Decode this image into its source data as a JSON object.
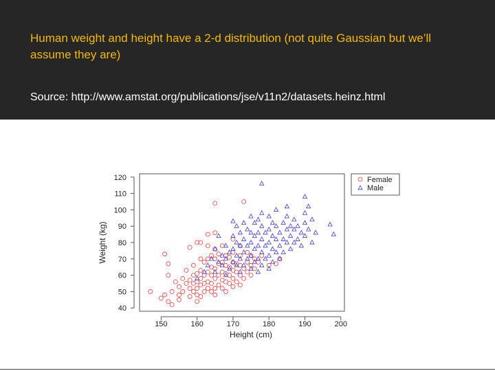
{
  "slide": {
    "title": "Human weight and height have a 2-d distribution (not quite Gaussian but we’ll assume they are)",
    "source": "Source: http://www.amstat.org/publications/jse/v11n2/datasets.heinz.html"
  },
  "colors": {
    "female": "#e8413c",
    "male": "#3b3bd6",
    "header_bg": "#262626",
    "title": "#f5b800"
  },
  "chart_data": {
    "type": "scatter",
    "title": "",
    "xlabel": "Height (cm)",
    "ylabel": "Weight (kg)",
    "xlim": [
      144,
      201
    ],
    "ylim": [
      38,
      122
    ],
    "xticks": [
      150,
      160,
      170,
      180,
      190,
      200
    ],
    "yticks": [
      40,
      50,
      60,
      70,
      80,
      90,
      100,
      110,
      120
    ],
    "grid": false,
    "legend": {
      "position": "top-right outside",
      "entries": [
        "Female",
        "Male"
      ]
    },
    "series": [
      {
        "name": "Female",
        "marker": "circle",
        "points": [
          [
            147,
            50
          ],
          [
            150,
            46
          ],
          [
            151,
            48
          ],
          [
            151,
            73
          ],
          [
            152,
            44
          ],
          [
            152,
            60
          ],
          [
            152,
            67
          ],
          [
            153,
            42
          ],
          [
            153,
            50
          ],
          [
            154,
            56
          ],
          [
            155,
            45
          ],
          [
            155,
            48
          ],
          [
            155,
            53
          ],
          [
            156,
            50
          ],
          [
            156,
            58
          ],
          [
            157,
            55
          ],
          [
            157,
            63
          ],
          [
            158,
            47
          ],
          [
            158,
            52
          ],
          [
            158,
            57
          ],
          [
            158,
            77
          ],
          [
            159,
            50
          ],
          [
            159,
            55
          ],
          [
            159,
            60
          ],
          [
            159,
            66
          ],
          [
            160,
            44
          ],
          [
            160,
            48
          ],
          [
            160,
            52
          ],
          [
            160,
            56
          ],
          [
            160,
            61
          ],
          [
            160,
            80
          ],
          [
            161,
            47
          ],
          [
            161,
            54
          ],
          [
            161,
            58
          ],
          [
            161,
            63
          ],
          [
            161,
            70
          ],
          [
            161,
            80
          ],
          [
            162,
            50
          ],
          [
            162,
            55
          ],
          [
            162,
            60
          ],
          [
            162,
            68
          ],
          [
            163,
            52
          ],
          [
            163,
            56
          ],
          [
            163,
            62
          ],
          [
            163,
            70
          ],
          [
            163,
            78
          ],
          [
            163,
            85
          ],
          [
            164,
            50
          ],
          [
            164,
            55
          ],
          [
            164,
            60
          ],
          [
            164,
            65
          ],
          [
            164,
            72
          ],
          [
            165,
            48
          ],
          [
            165,
            52
          ],
          [
            165,
            58
          ],
          [
            165,
            64
          ],
          [
            165,
            70
          ],
          [
            165,
            76
          ],
          [
            165,
            86
          ],
          [
            165,
            104
          ],
          [
            166,
            54
          ],
          [
            166,
            60
          ],
          [
            166,
            67
          ],
          [
            166,
            73
          ],
          [
            167,
            52
          ],
          [
            167,
            57
          ],
          [
            167,
            62
          ],
          [
            167,
            68
          ],
          [
            167,
            78
          ],
          [
            168,
            50
          ],
          [
            168,
            56
          ],
          [
            168,
            61
          ],
          [
            168,
            66
          ],
          [
            168,
            72
          ],
          [
            169,
            55
          ],
          [
            169,
            60
          ],
          [
            169,
            65
          ],
          [
            169,
            71
          ],
          [
            170,
            53
          ],
          [
            170,
            58
          ],
          [
            170,
            63
          ],
          [
            170,
            68
          ],
          [
            170,
            74
          ],
          [
            170,
            82
          ],
          [
            171,
            56
          ],
          [
            171,
            62
          ],
          [
            171,
            67
          ],
          [
            172,
            54
          ],
          [
            172,
            60
          ],
          [
            172,
            66
          ],
          [
            172,
            72
          ],
          [
            172,
            78
          ],
          [
            173,
            58
          ],
          [
            173,
            64
          ],
          [
            173,
            105
          ],
          [
            174,
            62
          ],
          [
            174,
            68
          ],
          [
            174,
            74
          ],
          [
            175,
            60
          ],
          [
            175,
            66
          ],
          [
            175,
            72
          ],
          [
            176,
            64
          ],
          [
            176,
            70
          ],
          [
            177,
            68
          ],
          [
            178,
            72
          ],
          [
            180,
            66
          ],
          [
            182,
            67
          ],
          [
            183,
            70
          ]
        ]
      },
      {
        "name": "Male",
        "marker": "triangle",
        "points": [
          [
            160,
            58
          ],
          [
            162,
            62
          ],
          [
            163,
            66
          ],
          [
            164,
            70
          ],
          [
            165,
            62
          ],
          [
            165,
            76
          ],
          [
            166,
            68
          ],
          [
            166,
            84
          ],
          [
            167,
            66
          ],
          [
            167,
            72
          ],
          [
            168,
            60
          ],
          [
            168,
            70
          ],
          [
            168,
            78
          ],
          [
            169,
            64
          ],
          [
            169,
            74
          ],
          [
            170,
            68
          ],
          [
            170,
            76
          ],
          [
            170,
            84
          ],
          [
            170,
            93
          ],
          [
            171,
            66
          ],
          [
            171,
            72
          ],
          [
            171,
            80
          ],
          [
            171,
            90
          ],
          [
            172,
            62
          ],
          [
            172,
            70
          ],
          [
            172,
            78
          ],
          [
            172,
            86
          ],
          [
            173,
            66
          ],
          [
            173,
            74
          ],
          [
            173,
            82
          ],
          [
            173,
            92
          ],
          [
            174,
            70
          ],
          [
            174,
            78
          ],
          [
            174,
            88
          ],
          [
            175,
            64
          ],
          [
            175,
            72
          ],
          [
            175,
            80
          ],
          [
            175,
            86
          ],
          [
            175,
            96
          ],
          [
            176,
            68
          ],
          [
            176,
            76
          ],
          [
            176,
            84
          ],
          [
            176,
            92
          ],
          [
            177,
            62
          ],
          [
            177,
            70
          ],
          [
            177,
            78
          ],
          [
            177,
            86
          ],
          [
            177,
            94
          ],
          [
            178,
            66
          ],
          [
            178,
            74
          ],
          [
            178,
            82
          ],
          [
            178,
            90
          ],
          [
            178,
            98
          ],
          [
            178,
            116
          ],
          [
            179,
            70
          ],
          [
            179,
            78
          ],
          [
            179,
            86
          ],
          [
            180,
            64
          ],
          [
            180,
            72
          ],
          [
            180,
            80
          ],
          [
            180,
            88
          ],
          [
            180,
            96
          ],
          [
            181,
            68
          ],
          [
            181,
            76
          ],
          [
            181,
            84
          ],
          [
            181,
            92
          ],
          [
            182,
            74
          ],
          [
            182,
            82
          ],
          [
            182,
            90
          ],
          [
            182,
            100
          ],
          [
            183,
            70
          ],
          [
            183,
            78
          ],
          [
            183,
            86
          ],
          [
            184,
            74
          ],
          [
            184,
            82
          ],
          [
            184,
            92
          ],
          [
            185,
            80
          ],
          [
            185,
            88
          ],
          [
            185,
            96
          ],
          [
            185,
            102
          ],
          [
            186,
            76
          ],
          [
            186,
            84
          ],
          [
            186,
            90
          ],
          [
            187,
            80
          ],
          [
            187,
            88
          ],
          [
            187,
            94
          ],
          [
            188,
            82
          ],
          [
            188,
            90
          ],
          [
            189,
            78
          ],
          [
            189,
            86
          ],
          [
            190,
            84
          ],
          [
            190,
            92
          ],
          [
            190,
            98
          ],
          [
            190,
            108
          ],
          [
            191,
            88
          ],
          [
            191,
            102
          ],
          [
            192,
            80
          ],
          [
            192,
            94
          ],
          [
            193,
            86
          ],
          [
            197,
            91
          ],
          [
            198,
            85
          ]
        ]
      }
    ]
  }
}
